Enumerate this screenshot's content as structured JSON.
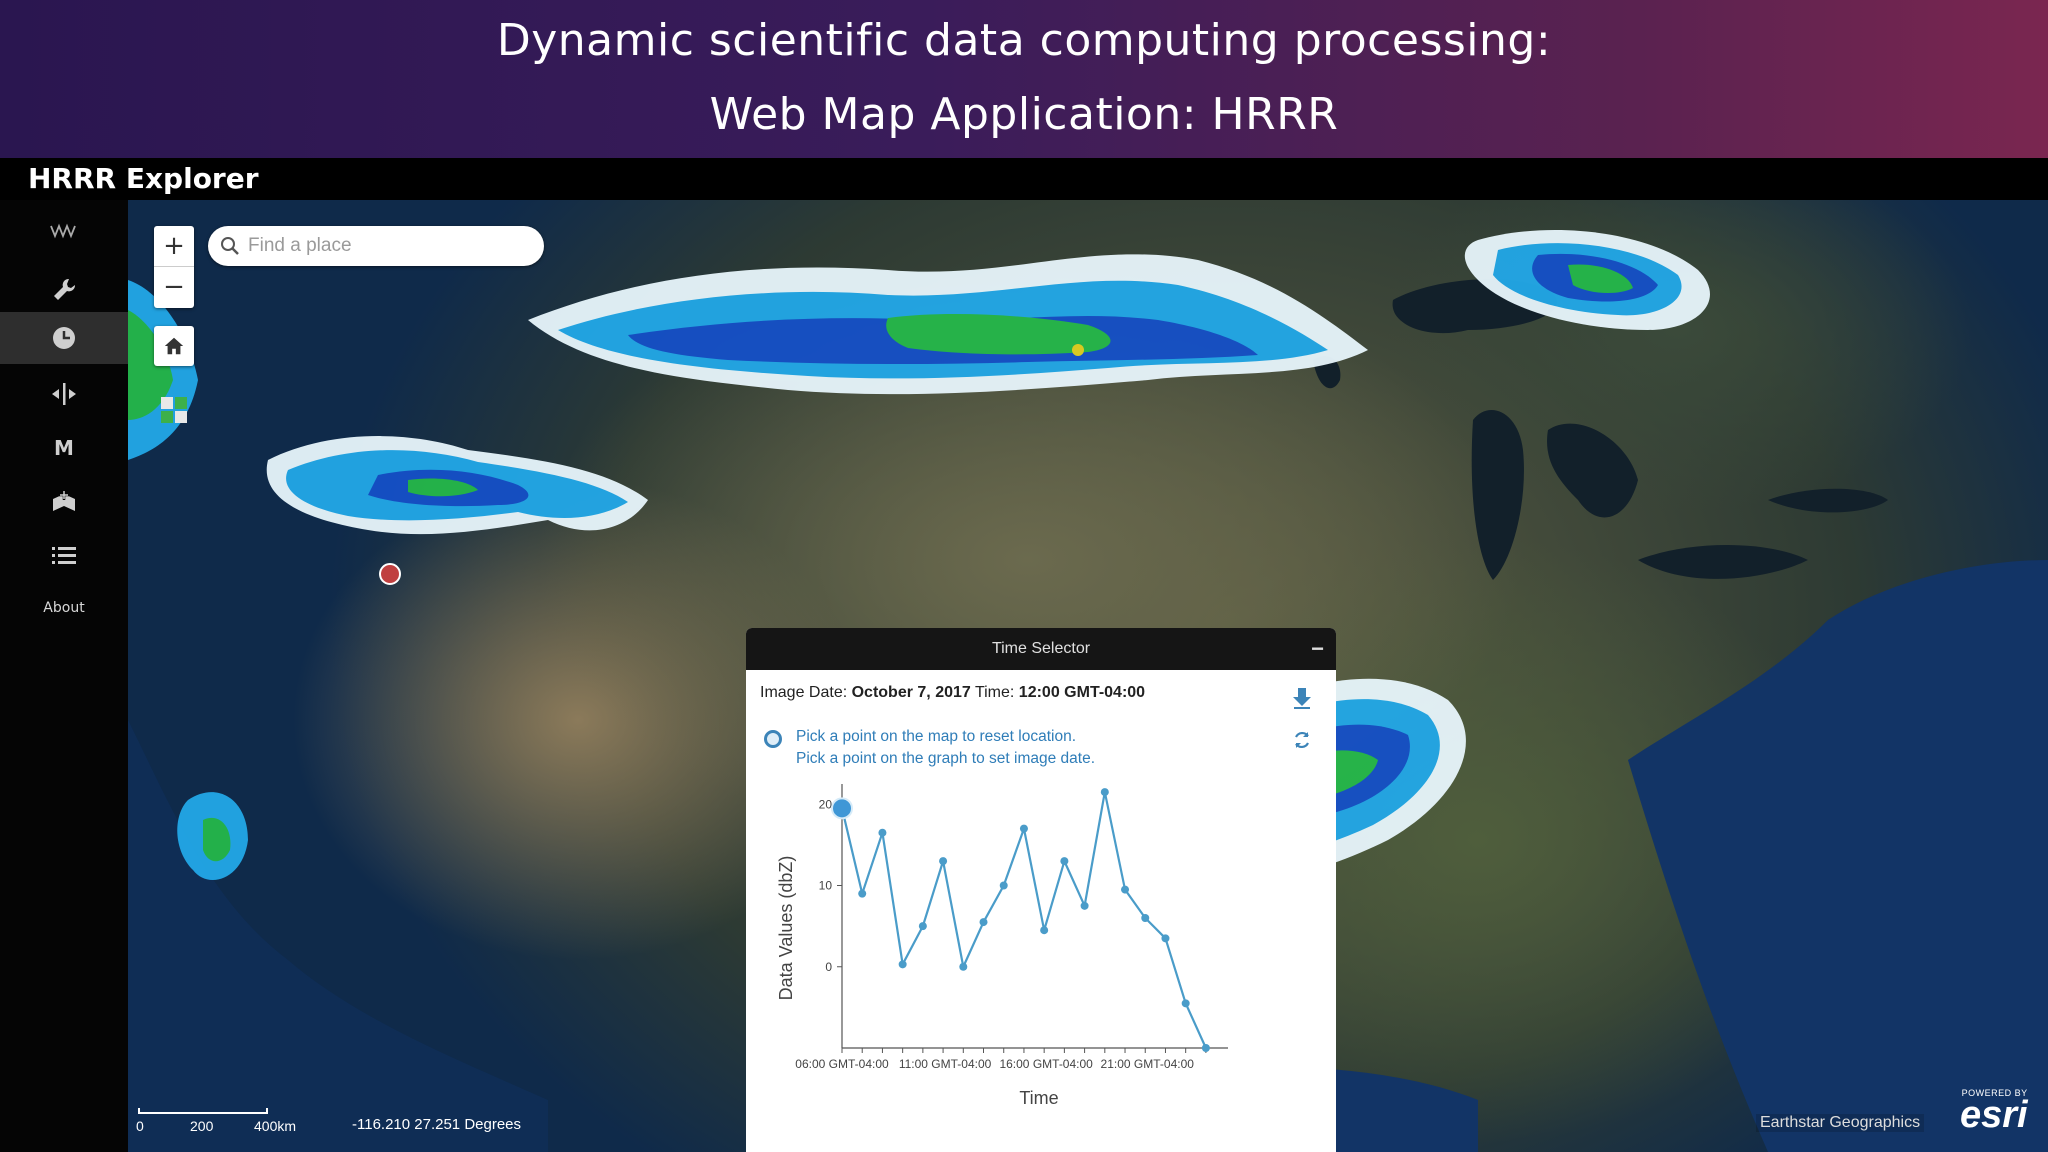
{
  "slide": {
    "title_line1": "Dynamic scientific data computing processing:",
    "title_line2": "Web Map Application: HRRR"
  },
  "app": {
    "title": "HRRR Explorer"
  },
  "sidebar": {
    "items": [
      {
        "icon": "waveform-icon"
      },
      {
        "icon": "wrench-icon"
      },
      {
        "icon": "clock-icon",
        "active": true
      },
      {
        "icon": "swipe-icon"
      },
      {
        "icon": "measure-icon",
        "label": "M"
      },
      {
        "icon": "add-data-icon"
      },
      {
        "icon": "layer-list-icon"
      }
    ],
    "about_label": "About"
  },
  "map": {
    "zoom_in": "+",
    "zoom_out": "−",
    "search_placeholder": "Find a place",
    "scale_labels": [
      "0",
      "200",
      "400km"
    ],
    "coordinates": "-116.210 27.251 Degrees",
    "attribution": "Earthstar Geographics",
    "esri_powered": "POWERED BY",
    "esri_logo": "esri"
  },
  "time_selector": {
    "title": "Time Selector",
    "minimize": "−",
    "image_date_label": "Image Date:",
    "image_date_value": "October 7, 2017",
    "time_label": "Time:",
    "time_value": "12:00 GMT-04:00",
    "hint1": "Pick a point on the map to reset location.",
    "hint2": "Pick a point on the graph to set image date."
  },
  "chart_data": {
    "type": "line",
    "xlabel": "Time",
    "ylabel": "Data Values (dbZ)",
    "x_tick_labels": [
      "06:00 GMT-04:00",
      "11:00 GMT-04:00",
      "16:00 GMT-04:00",
      "21:00 GMT-04:00"
    ],
    "y_ticks": [
      0,
      10,
      20
    ],
    "ylim": [
      -10,
      22
    ],
    "xlim": [
      0,
      18.5
    ],
    "x": [
      0,
      1,
      2,
      3,
      4,
      5,
      6,
      7,
      8,
      9,
      10,
      11,
      12,
      13,
      14,
      15,
      16,
      17,
      18
    ],
    "values": [
      19.5,
      9,
      16.5,
      0.3,
      5,
      13,
      0,
      5.5,
      10,
      17,
      4.5,
      13,
      7.5,
      21.5,
      9.5,
      6,
      3.5,
      -4.5,
      -10
    ],
    "highlight_index": 0,
    "line_color": "#4a9cc9"
  }
}
